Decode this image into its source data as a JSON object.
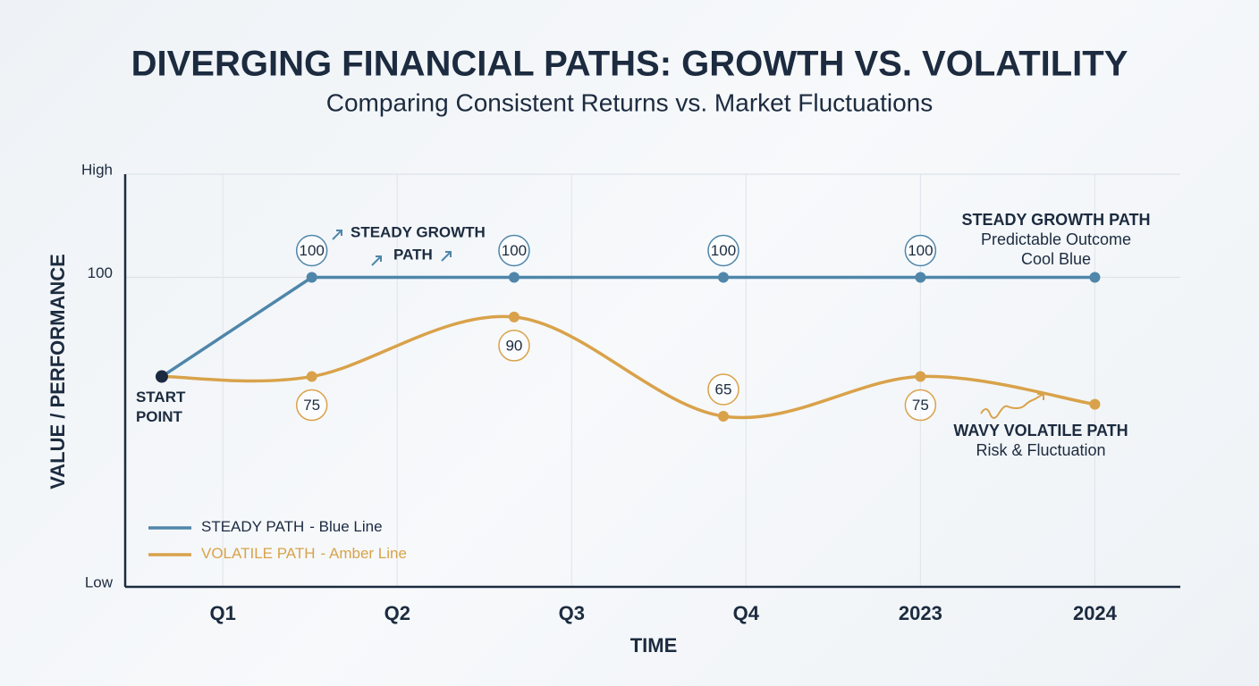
{
  "chart_data": {
    "type": "line",
    "title": "DIVERGING FINANCIAL PATHS: GROWTH VS. VOLATILITY",
    "subtitle": "Comparing Consistent Returns vs. Market Fluctuations",
    "x_label": "TIME",
    "y_label": "VALUE / PERFORMANCE",
    "x": [
      -0.35,
      0.51,
      1.67,
      2.87,
      4,
      5
    ],
    "xlim": [
      -0.56,
      5.49
    ],
    "xticks": [
      {
        "value": 0,
        "label": "Q1"
      },
      {
        "value": 1,
        "label": "Q2"
      },
      {
        "value": 2,
        "label": "Q3"
      },
      {
        "value": 3,
        "label": "Q4"
      },
      {
        "value": 4,
        "label": "2023"
      },
      {
        "value": 5,
        "label": "2024"
      }
    ],
    "ylim": [
      22,
      126
    ],
    "yticks": [
      {
        "value": 22,
        "label": "Low"
      },
      100,
      {
        "value": 126,
        "label": "High"
      }
    ],
    "grid": true,
    "series": [
      {
        "name": "STEADY PATH",
        "legend_note": "- Blue Line",
        "color": "#4f86aa",
        "smooth": false,
        "values": [
          75,
          100,
          100,
          100,
          100,
          100
        ],
        "value_labels": [
          null,
          "100",
          "100",
          "100",
          "100",
          null
        ]
      },
      {
        "name": "VOLATILE PATH",
        "legend_note": "- Amber Line",
        "color": "#d9a24a",
        "smooth": true,
        "values": [
          75,
          75,
          90,
          65,
          75,
          68
        ],
        "value_labels": [
          null,
          "75",
          "90",
          "65",
          "75",
          null
        ]
      }
    ],
    "annotations": {
      "start": [
        "START",
        "POINT"
      ],
      "steady_inline": [
        "STEADY GROWTH",
        "PATH"
      ],
      "steady_side": [
        "STEADY GROWTH PATH",
        "Predictable Outcome",
        "Cool Blue"
      ],
      "volatile_side": [
        "WAVY VOLATILE PATH",
        "Risk & Fluctuation"
      ]
    }
  }
}
